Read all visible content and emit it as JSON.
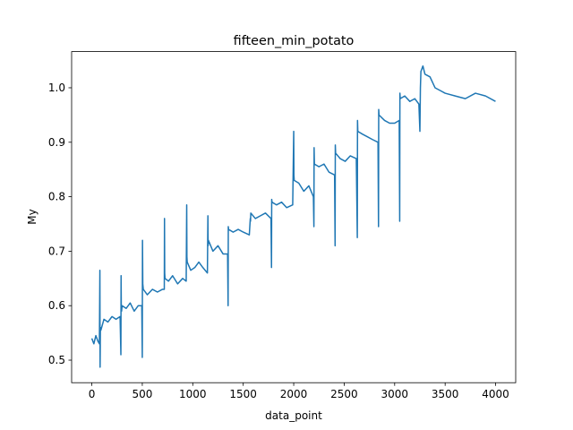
{
  "chart_data": {
    "type": "line",
    "title": "fifteen_min_potato",
    "x_label": "data_point",
    "y_label": "My",
    "x": [
      0,
      20,
      40,
      60,
      75,
      80,
      82,
      85,
      90,
      120,
      160,
      200,
      240,
      280,
      288,
      290,
      292,
      295,
      300,
      340,
      380,
      420,
      460,
      495,
      500,
      502,
      505,
      510,
      550,
      600,
      650,
      700,
      718,
      720,
      722,
      725,
      760,
      800,
      850,
      900,
      935,
      940,
      942,
      945,
      980,
      1020,
      1060,
      1100,
      1145,
      1150,
      1152,
      1155,
      1200,
      1250,
      1300,
      1345,
      1350,
      1352,
      1355,
      1400,
      1450,
      1500,
      1560,
      1570,
      1572,
      1575,
      1620,
      1670,
      1720,
      1775,
      1780,
      1782,
      1785,
      1830,
      1880,
      1930,
      1990,
      2000,
      2002,
      2005,
      2050,
      2100,
      2150,
      2195,
      2200,
      2202,
      2205,
      2250,
      2300,
      2350,
      2405,
      2410,
      2412,
      2415,
      2460,
      2510,
      2560,
      2620,
      2630,
      2632,
      2635,
      2680,
      2730,
      2780,
      2835,
      2840,
      2842,
      2845,
      2900,
      2950,
      3000,
      3045,
      3050,
      3052,
      3055,
      3100,
      3150,
      3200,
      3240,
      3250,
      3255,
      3260,
      3280,
      3300,
      3350,
      3400,
      3450,
      3500,
      3600,
      3700,
      3800,
      3900,
      3999
    ],
    "series": [
      {
        "name": "My",
        "color": "#1f77b4",
        "values": [
          0.54,
          0.53,
          0.545,
          0.535,
          0.53,
          0.665,
          0.487,
          0.56,
          0.555,
          0.575,
          0.57,
          0.58,
          0.575,
          0.58,
          0.51,
          0.655,
          0.6,
          0.59,
          0.6,
          0.595,
          0.605,
          0.59,
          0.6,
          0.6,
          0.505,
          0.72,
          0.64,
          0.63,
          0.62,
          0.63,
          0.625,
          0.63,
          0.63,
          0.76,
          0.66,
          0.65,
          0.645,
          0.655,
          0.64,
          0.65,
          0.645,
          0.785,
          0.69,
          0.68,
          0.665,
          0.67,
          0.68,
          0.67,
          0.66,
          0.765,
          0.71,
          0.72,
          0.7,
          0.71,
          0.695,
          0.695,
          0.6,
          0.745,
          0.74,
          0.735,
          0.74,
          0.735,
          0.73,
          0.76,
          0.755,
          0.77,
          0.76,
          0.765,
          0.77,
          0.76,
          0.67,
          0.795,
          0.79,
          0.785,
          0.79,
          0.78,
          0.785,
          0.92,
          0.84,
          0.83,
          0.825,
          0.81,
          0.82,
          0.8,
          0.745,
          0.89,
          0.86,
          0.855,
          0.86,
          0.845,
          0.84,
          0.71,
          0.895,
          0.88,
          0.87,
          0.865,
          0.875,
          0.87,
          0.725,
          0.94,
          0.92,
          0.915,
          0.91,
          0.905,
          0.9,
          0.745,
          0.96,
          0.95,
          0.94,
          0.935,
          0.935,
          0.94,
          0.755,
          0.99,
          0.98,
          0.985,
          0.975,
          0.98,
          0.97,
          0.92,
          1.0,
          1.03,
          1.04,
          1.025,
          1.02,
          1.0,
          0.995,
          0.99,
          0.985,
          0.98,
          0.99,
          0.985,
          0.975
        ]
      }
    ],
    "xlim": [
      -200,
      4199
    ],
    "ylim": [
      0.4586,
      1.0664
    ],
    "xticks": [
      0,
      500,
      1000,
      1500,
      2000,
      2500,
      3000,
      3500,
      4000
    ],
    "yticks": [
      0.5,
      0.6,
      0.7,
      0.8,
      0.9,
      {
        "value": 1,
        "label": "1.0"
      }
    ]
  }
}
